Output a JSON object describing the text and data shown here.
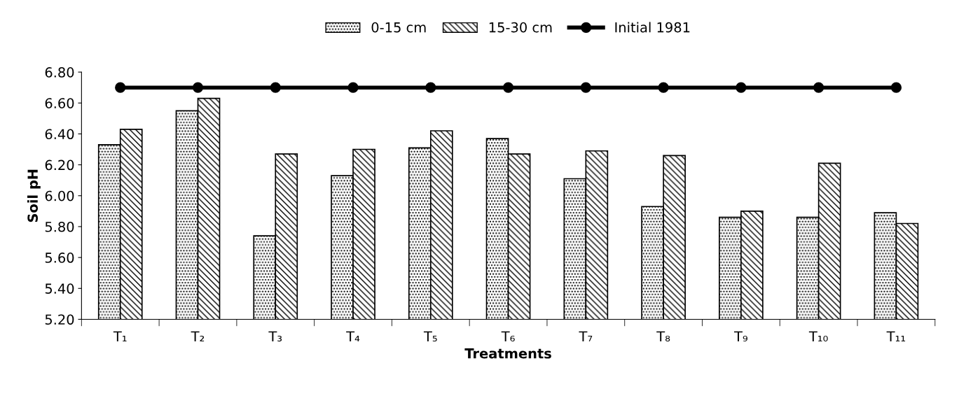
{
  "chart_data": {
    "type": "bar",
    "xlabel": "Treatments",
    "ylabel": "Soil pH",
    "categories": [
      "T₁",
      "T₂",
      "T₃",
      "T₄",
      "T₅",
      "T₆",
      "T₇",
      "T₈",
      "T₉",
      "T₁₀",
      "T₁₁"
    ],
    "series": [
      {
        "name": "0-15 cm",
        "color": "#000000",
        "values": [
          6.33,
          6.55,
          5.74,
          6.13,
          6.31,
          6.37,
          6.11,
          5.93,
          5.86,
          5.86,
          5.89
        ]
      },
      {
        "name": "15-30 cm",
        "color": "#000000",
        "values": [
          6.43,
          6.63,
          6.27,
          6.3,
          6.42,
          6.27,
          6.29,
          6.26,
          5.9,
          6.21,
          5.82
        ]
      },
      {
        "name": "Initial 1981",
        "type": "line",
        "color": "#000000",
        "marker": "circle",
        "values": [
          6.7,
          6.7,
          6.7,
          6.7,
          6.7,
          6.7,
          6.7,
          6.7,
          6.7,
          6.7,
          6.7
        ]
      }
    ],
    "ylim": [
      5.2,
      6.8
    ],
    "yticks": [
      {
        "value": 5.2,
        "label": "5.20"
      },
      {
        "value": 5.4,
        "label": "5.40"
      },
      {
        "value": 5.6,
        "label": "5.60"
      },
      {
        "value": 5.8,
        "label": "5.80"
      },
      {
        "value": 6.0,
        "label": "6.00"
      },
      {
        "value": 6.2,
        "label": "6.20"
      },
      {
        "value": 6.4,
        "label": "6.40"
      },
      {
        "value": 6.6,
        "label": "6.60"
      },
      {
        "value": 6.8,
        "label": "6.80"
      }
    ],
    "grid": false,
    "legend": "top"
  }
}
